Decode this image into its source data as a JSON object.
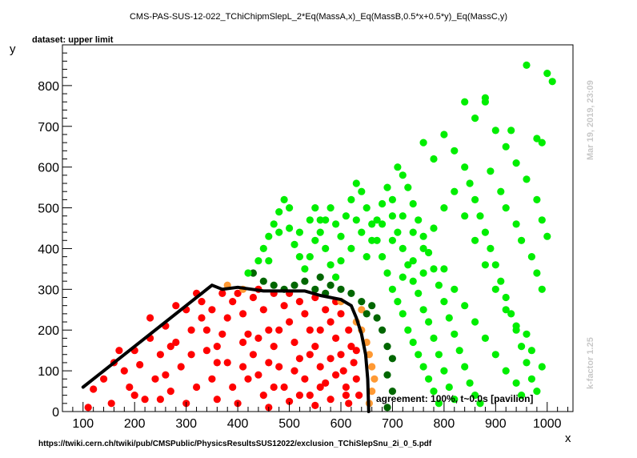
{
  "header": {
    "title": "CMS-PAS-SUS-12-022_TChiChipmSlepL_2*Eq(MassA,x)_Eq(MassB,0.5*x+0.5*y)_Eq(MassC,y)",
    "dataset_label": "dataset: upper limit"
  },
  "side": {
    "timestamp": "Mar 19, 2019, 23:09",
    "kfactor": "k-factor 1.25"
  },
  "footer": {
    "url": "https://twiki.cern.ch/twiki/pub/CMSPublic/PhysicsResultsSUS12022/exclusion_TChiSlepSnu_2i_0_5.pdf",
    "agreement": "agreement: 100%, t~0.0s [pavilion]"
  },
  "colors": {
    "excluded": "#ff0000",
    "allowed": "#00ee00",
    "excluded_border": "#ff9933",
    "allowed_border": "#006600",
    "contour": "#000000"
  },
  "chart_data": {
    "type": "scatter",
    "xlabel": "x",
    "ylabel": "y",
    "xlim": [
      60,
      1050
    ],
    "ylim": [
      0,
      900
    ],
    "xticks": [
      100,
      200,
      300,
      400,
      500,
      600,
      700,
      800,
      900,
      1000
    ],
    "yticks": [
      0,
      100,
      200,
      300,
      400,
      500,
      600,
      700,
      800
    ],
    "series": [
      {
        "category": "excluded",
        "points": [
          [
            110,
            10
          ],
          [
            120,
            55
          ],
          [
            140,
            80
          ],
          [
            160,
            120
          ],
          [
            155,
            20
          ],
          [
            180,
            100
          ],
          [
            200,
            150
          ],
          [
            190,
            60
          ],
          [
            220,
            30
          ],
          [
            230,
            180
          ],
          [
            250,
            140
          ],
          [
            240,
            80
          ],
          [
            260,
            210
          ],
          [
            280,
            170
          ],
          [
            270,
            50
          ],
          [
            300,
            250
          ],
          [
            310,
            200
          ],
          [
            290,
            110
          ],
          [
            320,
            290
          ],
          [
            330,
            230
          ],
          [
            340,
            150
          ],
          [
            350,
            80
          ],
          [
            360,
            30
          ],
          [
            300,
            20
          ],
          [
            320,
            60
          ],
          [
            280,
            260
          ],
          [
            330,
            270
          ],
          [
            350,
            250
          ],
          [
            370,
            190
          ],
          [
            380,
            120
          ],
          [
            390,
            60
          ],
          [
            400,
            20
          ],
          [
            370,
            290
          ],
          [
            390,
            270
          ],
          [
            410,
            240
          ],
          [
            420,
            190
          ],
          [
            430,
            140
          ],
          [
            440,
            90
          ],
          [
            450,
            40
          ],
          [
            460,
            10
          ],
          [
            400,
            290
          ],
          [
            430,
            280
          ],
          [
            450,
            250
          ],
          [
            460,
            200
          ],
          [
            470,
            160
          ],
          [
            480,
            110
          ],
          [
            490,
            60
          ],
          [
            500,
            25
          ],
          [
            440,
            300
          ],
          [
            470,
            290
          ],
          [
            490,
            260
          ],
          [
            500,
            220
          ],
          [
            510,
            170
          ],
          [
            520,
            130
          ],
          [
            530,
            80
          ],
          [
            540,
            40
          ],
          [
            550,
            15
          ],
          [
            500,
            290
          ],
          [
            520,
            270
          ],
          [
            530,
            240
          ],
          [
            540,
            200
          ],
          [
            550,
            160
          ],
          [
            560,
            110
          ],
          [
            570,
            70
          ],
          [
            580,
            30
          ],
          [
            550,
            280
          ],
          [
            570,
            250
          ],
          [
            580,
            220
          ],
          [
            590,
            180
          ],
          [
            600,
            140
          ],
          [
            605,
            100
          ],
          [
            610,
            60
          ],
          [
            615,
            20
          ],
          [
            590,
            270
          ],
          [
            600,
            240
          ],
          [
            615,
            200
          ],
          [
            620,
            160
          ],
          [
            625,
            120
          ],
          [
            630,
            80
          ],
          [
            635,
            40
          ],
          [
            210,
            115
          ],
          [
            230,
            230
          ],
          [
            260,
            90
          ],
          [
            310,
            140
          ],
          [
            340,
            200
          ],
          [
            360,
            160
          ],
          [
            380,
            230
          ],
          [
            410,
            170
          ],
          [
            420,
            80
          ],
          [
            460,
            120
          ],
          [
            480,
            200
          ],
          [
            510,
            100
          ],
          [
            540,
            140
          ],
          [
            560,
            200
          ],
          [
            580,
            130
          ],
          [
            590,
            90
          ],
          [
            200,
            40
          ],
          [
            170,
            150
          ],
          [
            250,
            30
          ],
          [
            270,
            160
          ],
          [
            360,
            120
          ],
          [
            410,
            110
          ],
          [
            440,
            180
          ],
          [
            470,
            60
          ],
          [
            520,
            40
          ],
          [
            560,
            60
          ],
          [
            610,
            40
          ],
          [
            630,
            150
          ]
        ]
      },
      {
        "category": "excluded-border",
        "points": [
          [
            380,
            310
          ],
          [
            410,
            300
          ],
          [
            640,
            200
          ],
          [
            650,
            170
          ],
          [
            655,
            140
          ],
          [
            660,
            110
          ],
          [
            665,
            80
          ],
          [
            660,
            50
          ],
          [
            655,
            20
          ],
          [
            600,
            270
          ],
          [
            630,
            220
          ],
          [
            640,
            250
          ]
        ]
      },
      {
        "category": "allowed-border",
        "points": [
          [
            430,
            340
          ],
          [
            450,
            320
          ],
          [
            470,
            310
          ],
          [
            490,
            300
          ],
          [
            510,
            310
          ],
          [
            530,
            320
          ],
          [
            550,
            300
          ],
          [
            570,
            290
          ],
          [
            580,
            310
          ],
          [
            600,
            300
          ],
          [
            620,
            290
          ],
          [
            640,
            270
          ],
          [
            650,
            240
          ],
          [
            670,
            230
          ],
          [
            680,
            200
          ],
          [
            690,
            160
          ],
          [
            660,
            260
          ],
          [
            700,
            130
          ],
          [
            690,
            90
          ],
          [
            700,
            50
          ],
          [
            690,
            10
          ],
          [
            560,
            330
          ]
        ]
      },
      {
        "category": "allowed",
        "points": [
          [
            420,
            340
          ],
          [
            440,
            370
          ],
          [
            450,
            400
          ],
          [
            460,
            430
          ],
          [
            470,
            460
          ],
          [
            480,
            490
          ],
          [
            490,
            520
          ],
          [
            500,
            450
          ],
          [
            510,
            410
          ],
          [
            520,
            380
          ],
          [
            530,
            350
          ],
          [
            540,
            470
          ],
          [
            550,
            500
          ],
          [
            560,
            440
          ],
          [
            570,
            400
          ],
          [
            580,
            360
          ],
          [
            590,
            330
          ],
          [
            600,
            430
          ],
          [
            610,
            480
          ],
          [
            620,
            520
          ],
          [
            630,
            560
          ],
          [
            640,
            540
          ],
          [
            650,
            500
          ],
          [
            660,
            460
          ],
          [
            670,
            420
          ],
          [
            680,
            380
          ],
          [
            690,
            340
          ],
          [
            700,
            300
          ],
          [
            710,
            270
          ],
          [
            720,
            240
          ],
          [
            730,
            200
          ],
          [
            740,
            170
          ],
          [
            750,
            140
          ],
          [
            760,
            110
          ],
          [
            770,
            80
          ],
          [
            780,
            50
          ],
          [
            790,
            20
          ],
          [
            710,
            600
          ],
          [
            720,
            580
          ],
          [
            730,
            550
          ],
          [
            740,
            510
          ],
          [
            750,
            470
          ],
          [
            760,
            430
          ],
          [
            770,
            390
          ],
          [
            780,
            350
          ],
          [
            790,
            310
          ],
          [
            800,
            270
          ],
          [
            810,
            230
          ],
          [
            820,
            190
          ],
          [
            830,
            150
          ],
          [
            840,
            110
          ],
          [
            850,
            70
          ],
          [
            860,
            40
          ],
          [
            870,
            20
          ],
          [
            760,
            660
          ],
          [
            780,
            620
          ],
          [
            800,
            680
          ],
          [
            820,
            640
          ],
          [
            840,
            600
          ],
          [
            850,
            560
          ],
          [
            860,
            520
          ],
          [
            870,
            480
          ],
          [
            880,
            440
          ],
          [
            890,
            400
          ],
          [
            900,
            360
          ],
          [
            910,
            320
          ],
          [
            920,
            280
          ],
          [
            930,
            240
          ],
          [
            940,
            200
          ],
          [
            950,
            160
          ],
          [
            960,
            120
          ],
          [
            970,
            80
          ],
          [
            980,
            50
          ],
          [
            840,
            760
          ],
          [
            860,
            720
          ],
          [
            880,
            770
          ],
          [
            900,
            690
          ],
          [
            920,
            650
          ],
          [
            940,
            610
          ],
          [
            960,
            570
          ],
          [
            980,
            520
          ],
          [
            990,
            470
          ],
          [
            1000,
            430
          ],
          [
            960,
            850
          ],
          [
            1000,
            830
          ],
          [
            1010,
            810
          ],
          [
            980,
            670
          ],
          [
            990,
            660
          ],
          [
            880,
            760
          ],
          [
            930,
            690
          ],
          [
            890,
            590
          ],
          [
            910,
            540
          ],
          [
            920,
            500
          ],
          [
            940,
            460
          ],
          [
            950,
            420
          ],
          [
            970,
            380
          ],
          [
            980,
            340
          ],
          [
            990,
            300
          ],
          [
            960,
            190
          ],
          [
            970,
            150
          ],
          [
            990,
            110
          ],
          [
            650,
            380
          ],
          [
            660,
            420
          ],
          [
            670,
            470
          ],
          [
            680,
            510
          ],
          [
            690,
            550
          ],
          [
            700,
            480
          ],
          [
            710,
            440
          ],
          [
            720,
            400
          ],
          [
            730,
            360
          ],
          [
            740,
            320
          ],
          [
            750,
            290
          ],
          [
            760,
            250
          ],
          [
            770,
            220
          ],
          [
            780,
            180
          ],
          [
            790,
            140
          ],
          [
            800,
            100
          ],
          [
            810,
            60
          ],
          [
            820,
            30
          ],
          [
            600,
            370
          ],
          [
            620,
            400
          ],
          [
            640,
            440
          ],
          [
            630,
            470
          ],
          [
            590,
            460
          ],
          [
            580,
            500
          ],
          [
            570,
            470
          ],
          [
            560,
            470
          ],
          [
            550,
            420
          ],
          [
            540,
            380
          ],
          [
            520,
            440
          ],
          [
            500,
            500
          ],
          [
            480,
            440
          ],
          [
            460,
            370
          ],
          [
            700,
            520
          ],
          [
            720,
            480
          ],
          [
            740,
            440
          ],
          [
            760,
            400
          ],
          [
            780,
            450
          ],
          [
            800,
            500
          ],
          [
            820,
            540
          ],
          [
            840,
            480
          ],
          [
            860,
            420
          ],
          [
            880,
            360
          ],
          [
            900,
            300
          ],
          [
            920,
            250
          ],
          [
            940,
            210
          ],
          [
            700,
            420
          ],
          [
            680,
            460
          ],
          [
            720,
            330
          ],
          [
            740,
            370
          ],
          [
            760,
            340
          ],
          [
            800,
            350
          ],
          [
            820,
            300
          ],
          [
            840,
            260
          ],
          [
            860,
            220
          ],
          [
            880,
            180
          ],
          [
            900,
            140
          ],
          [
            920,
            100
          ],
          [
            940,
            70
          ],
          [
            950,
            40
          ]
        ]
      }
    ],
    "contour_line": [
      [
        100,
        60
      ],
      [
        350,
        310
      ],
      [
        370,
        300
      ],
      [
        400,
        305
      ],
      [
        450,
        296
      ],
      [
        530,
        296
      ],
      [
        560,
        285
      ],
      [
        600,
        275
      ],
      [
        620,
        260
      ],
      [
        630,
        230
      ],
      [
        640,
        190
      ],
      [
        648,
        140
      ],
      [
        652,
        80
      ],
      [
        654,
        0
      ]
    ]
  }
}
